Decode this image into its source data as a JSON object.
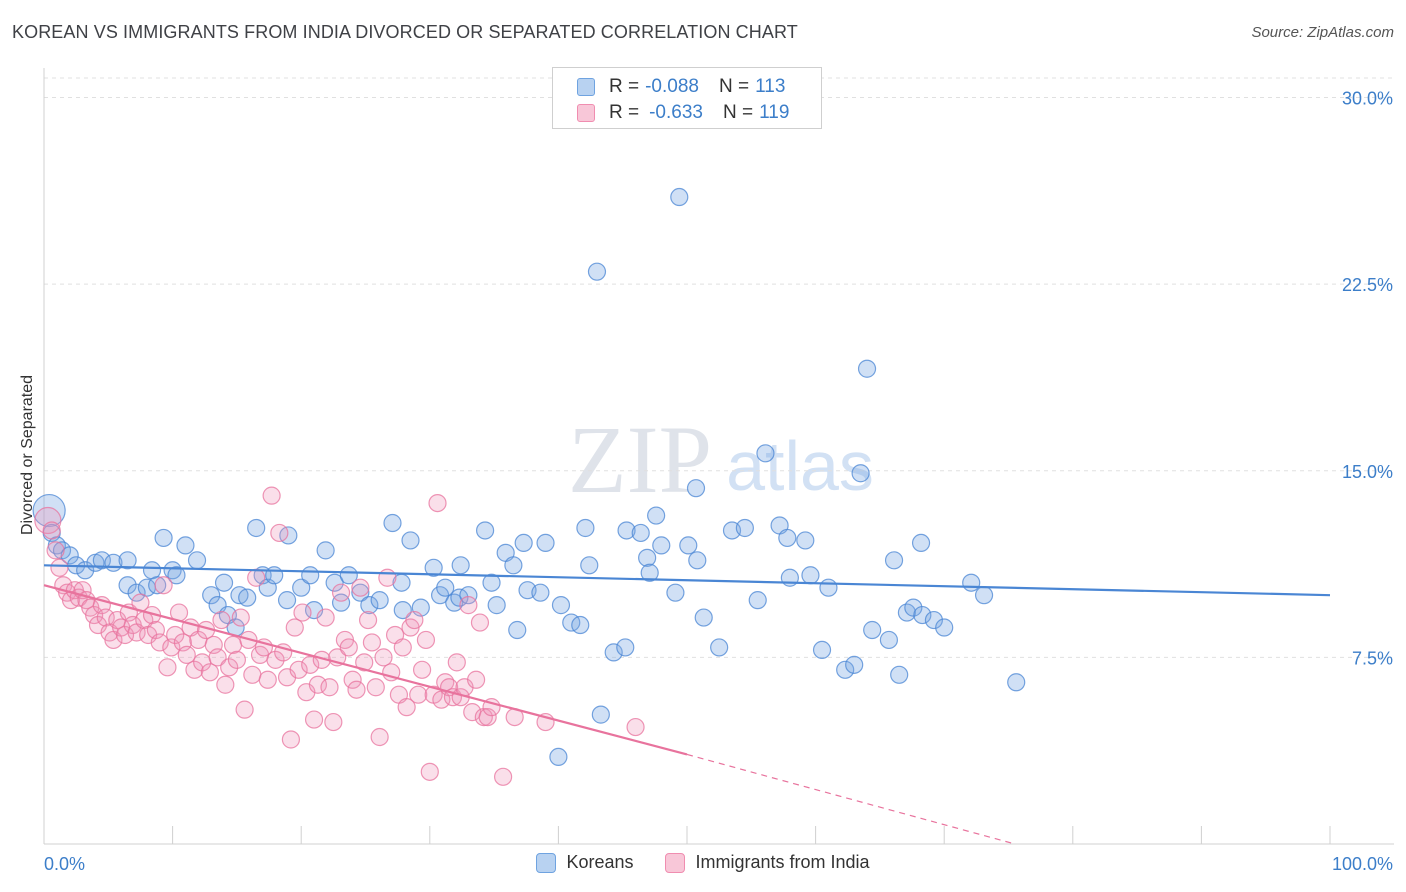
{
  "header": {
    "title": "KOREAN VS IMMIGRANTS FROM INDIA DIVORCED OR SEPARATED CORRELATION CHART",
    "source": "Source: ZipAtlas.com"
  },
  "watermark": {
    "zip": "ZIP",
    "atlas": "atlas"
  },
  "legend": {
    "r_label": "R =",
    "n_label": "N =",
    "rows": [
      {
        "r": "-0.088",
        "n": "113",
        "color": "#6fa3e0",
        "fill": "#b8d2f1"
      },
      {
        "r": "-0.633",
        "n": "119",
        "color": "#f08db0",
        "fill": "#f8c7d8"
      }
    ]
  },
  "bottom_legend": {
    "koreans": "Koreans",
    "india": "Immigrants from India"
  },
  "chart_data": {
    "type": "scatter",
    "title": "KOREAN VS IMMIGRANTS FROM INDIA DIVORCED OR SEPARATED CORRELATION CHART",
    "ylabel": "Divorced or Separated",
    "xlabel": "",
    "xlim": [
      0,
      100
    ],
    "ylim": [
      0,
      31.5
    ],
    "y_ticks": [
      {
        "v": 7.5,
        "label": "7.5%"
      },
      {
        "v": 15.0,
        "label": "15.0%"
      },
      {
        "v": 22.5,
        "label": "22.5%"
      },
      {
        "v": 30.0,
        "label": "30.0%"
      }
    ],
    "x_tick_labels": {
      "left": "0.0%",
      "right": "100.0%"
    },
    "grid": "horizontal dashed",
    "legend_placement": "top-center",
    "series": [
      {
        "name": "Koreans",
        "color": "#4a86d4",
        "fill": "rgba(120,165,225,0.35)",
        "trend": {
          "x": [
            0,
            100
          ],
          "y": [
            11.2,
            10.0
          ]
        },
        "points": [
          [
            0.4,
            13.4
          ],
          [
            0.6,
            12.5
          ],
          [
            1.0,
            12.0
          ],
          [
            1.4,
            11.8
          ],
          [
            2.0,
            11.6
          ],
          [
            2.5,
            11.2
          ],
          [
            3.2,
            11.0
          ],
          [
            4.0,
            11.3
          ],
          [
            4.5,
            11.4
          ],
          [
            5.4,
            11.3
          ],
          [
            6.5,
            11.4
          ],
          [
            6.5,
            10.4
          ],
          [
            7.2,
            10.1
          ],
          [
            8.0,
            10.3
          ],
          [
            8.4,
            11.0
          ],
          [
            8.8,
            10.4
          ],
          [
            9.3,
            12.3
          ],
          [
            10.0,
            11.0
          ],
          [
            10.3,
            10.8
          ],
          [
            11.0,
            12.0
          ],
          [
            11.9,
            11.4
          ],
          [
            13.0,
            10.0
          ],
          [
            13.5,
            9.6
          ],
          [
            14.0,
            10.5
          ],
          [
            14.3,
            9.2
          ],
          [
            14.9,
            8.7
          ],
          [
            15.2,
            10.0
          ],
          [
            15.8,
            9.9
          ],
          [
            16.5,
            12.7
          ],
          [
            17.0,
            10.8
          ],
          [
            17.4,
            10.3
          ],
          [
            17.9,
            10.8
          ],
          [
            18.9,
            9.8
          ],
          [
            19.0,
            12.4
          ],
          [
            20.0,
            10.3
          ],
          [
            20.7,
            10.8
          ],
          [
            21.0,
            9.4
          ],
          [
            21.9,
            11.8
          ],
          [
            22.6,
            10.5
          ],
          [
            23.1,
            9.7
          ],
          [
            23.7,
            10.8
          ],
          [
            24.6,
            10.1
          ],
          [
            25.3,
            9.6
          ],
          [
            26.1,
            9.8
          ],
          [
            27.1,
            12.9
          ],
          [
            27.8,
            10.5
          ],
          [
            27.9,
            9.4
          ],
          [
            28.5,
            12.2
          ],
          [
            29.3,
            9.5
          ],
          [
            30.3,
            11.1
          ],
          [
            30.8,
            10.0
          ],
          [
            31.2,
            10.3
          ],
          [
            31.9,
            9.7
          ],
          [
            32.3,
            9.9
          ],
          [
            32.4,
            11.2
          ],
          [
            33.0,
            10.0
          ],
          [
            34.3,
            12.6
          ],
          [
            34.8,
            10.5
          ],
          [
            35.2,
            9.6
          ],
          [
            35.9,
            11.7
          ],
          [
            36.5,
            11.2
          ],
          [
            36.8,
            8.6
          ],
          [
            37.3,
            12.1
          ],
          [
            37.6,
            10.2
          ],
          [
            38.6,
            10.1
          ],
          [
            39.0,
            12.1
          ],
          [
            40.0,
            3.5
          ],
          [
            40.2,
            9.6
          ],
          [
            41.0,
            8.9
          ],
          [
            41.7,
            8.8
          ],
          [
            42.1,
            12.7
          ],
          [
            42.4,
            11.2
          ],
          [
            43.0,
            23.0
          ],
          [
            43.3,
            5.2
          ],
          [
            44.3,
            7.7
          ],
          [
            45.2,
            7.9
          ],
          [
            45.3,
            12.6
          ],
          [
            46.4,
            12.5
          ],
          [
            46.9,
            11.5
          ],
          [
            47.1,
            10.9
          ],
          [
            47.6,
            13.2
          ],
          [
            48.0,
            12.0
          ],
          [
            49.1,
            10.1
          ],
          [
            49.4,
            26.0
          ],
          [
            50.1,
            12.0
          ],
          [
            50.7,
            14.3
          ],
          [
            50.8,
            11.4
          ],
          [
            51.3,
            9.1
          ],
          [
            52.5,
            7.9
          ],
          [
            53.5,
            12.6
          ],
          [
            54.5,
            12.7
          ],
          [
            55.5,
            9.8
          ],
          [
            56.1,
            15.7
          ],
          [
            57.2,
            12.8
          ],
          [
            57.8,
            12.3
          ],
          [
            58.0,
            10.7
          ],
          [
            59.2,
            12.2
          ],
          [
            59.6,
            10.8
          ],
          [
            60.5,
            7.8
          ],
          [
            61.0,
            10.3
          ],
          [
            62.3,
            7.0
          ],
          [
            63.0,
            7.2
          ],
          [
            63.5,
            14.9
          ],
          [
            64.0,
            19.1
          ],
          [
            64.4,
            8.6
          ],
          [
            65.7,
            8.2
          ],
          [
            66.1,
            11.4
          ],
          [
            66.5,
            6.8
          ],
          [
            67.1,
            9.3
          ],
          [
            67.6,
            9.5
          ],
          [
            68.2,
            12.1
          ],
          [
            68.3,
            9.2
          ],
          [
            69.2,
            9.0
          ],
          [
            70.0,
            8.7
          ],
          [
            72.1,
            10.5
          ],
          [
            73.1,
            10.0
          ],
          [
            75.6,
            6.5
          ]
        ]
      },
      {
        "name": "Immigrants from India",
        "color": "#e8739d",
        "fill": "rgba(240,150,185,0.30)",
        "trend": {
          "x": [
            0,
            50
          ],
          "y": [
            10.4,
            3.6
          ]
        },
        "trend_dashed": {
          "x": [
            50,
            75.5
          ],
          "y": [
            3.6,
            0.0
          ]
        },
        "points": [
          [
            0.3,
            13.0
          ],
          [
            0.6,
            12.6
          ],
          [
            0.9,
            11.8
          ],
          [
            1.2,
            11.1
          ],
          [
            1.5,
            10.4
          ],
          [
            1.8,
            10.1
          ],
          [
            2.1,
            9.8
          ],
          [
            2.4,
            10.2
          ],
          [
            2.7,
            9.9
          ],
          [
            3.0,
            10.2
          ],
          [
            3.3,
            9.8
          ],
          [
            3.6,
            9.5
          ],
          [
            3.9,
            9.2
          ],
          [
            4.2,
            8.8
          ],
          [
            4.5,
            9.6
          ],
          [
            4.8,
            9.1
          ],
          [
            5.1,
            8.5
          ],
          [
            5.4,
            8.2
          ],
          [
            5.7,
            9.0
          ],
          [
            6.0,
            8.7
          ],
          [
            6.3,
            8.4
          ],
          [
            6.6,
            9.3
          ],
          [
            6.9,
            8.8
          ],
          [
            7.2,
            8.5
          ],
          [
            7.5,
            9.7
          ],
          [
            7.8,
            9.0
          ],
          [
            8.1,
            8.4
          ],
          [
            8.4,
            9.2
          ],
          [
            8.7,
            8.6
          ],
          [
            9.0,
            8.1
          ],
          [
            9.3,
            10.4
          ],
          [
            9.6,
            7.1
          ],
          [
            9.9,
            7.9
          ],
          [
            10.2,
            8.4
          ],
          [
            10.5,
            9.3
          ],
          [
            10.8,
            8.1
          ],
          [
            11.1,
            7.6
          ],
          [
            11.4,
            8.7
          ],
          [
            11.7,
            7.0
          ],
          [
            12.0,
            8.2
          ],
          [
            12.3,
            7.3
          ],
          [
            12.6,
            8.6
          ],
          [
            12.9,
            6.9
          ],
          [
            13.2,
            8.0
          ],
          [
            13.5,
            7.5
          ],
          [
            13.8,
            9.0
          ],
          [
            14.1,
            6.4
          ],
          [
            14.4,
            7.1
          ],
          [
            14.7,
            8.0
          ],
          [
            15.0,
            7.4
          ],
          [
            15.3,
            9.1
          ],
          [
            15.6,
            5.4
          ],
          [
            15.9,
            8.2
          ],
          [
            16.2,
            6.8
          ],
          [
            16.5,
            10.7
          ],
          [
            16.8,
            7.6
          ],
          [
            17.1,
            7.9
          ],
          [
            17.4,
            6.6
          ],
          [
            17.7,
            14.0
          ],
          [
            18.0,
            7.4
          ],
          [
            18.3,
            12.5
          ],
          [
            18.6,
            7.7
          ],
          [
            18.9,
            6.7
          ],
          [
            19.2,
            4.2
          ],
          [
            19.5,
            8.7
          ],
          [
            19.8,
            7.0
          ],
          [
            20.1,
            9.3
          ],
          [
            20.4,
            6.1
          ],
          [
            20.7,
            7.2
          ],
          [
            21.0,
            5.0
          ],
          [
            21.3,
            6.4
          ],
          [
            21.6,
            7.4
          ],
          [
            21.9,
            9.1
          ],
          [
            22.2,
            6.3
          ],
          [
            22.5,
            4.9
          ],
          [
            22.8,
            7.5
          ],
          [
            23.1,
            10.1
          ],
          [
            23.4,
            8.2
          ],
          [
            23.7,
            7.9
          ],
          [
            24.0,
            6.6
          ],
          [
            24.3,
            6.2
          ],
          [
            24.6,
            10.3
          ],
          [
            24.9,
            7.3
          ],
          [
            25.2,
            9.0
          ],
          [
            25.5,
            8.1
          ],
          [
            25.8,
            6.3
          ],
          [
            26.1,
            4.3
          ],
          [
            26.4,
            7.5
          ],
          [
            26.7,
            10.7
          ],
          [
            27.0,
            6.9
          ],
          [
            27.3,
            8.4
          ],
          [
            27.6,
            6.0
          ],
          [
            27.9,
            7.9
          ],
          [
            28.2,
            5.5
          ],
          [
            28.5,
            8.7
          ],
          [
            28.8,
            9.0
          ],
          [
            29.1,
            6.0
          ],
          [
            29.4,
            7.0
          ],
          [
            29.7,
            8.2
          ],
          [
            30.0,
            2.9
          ],
          [
            30.3,
            6.0
          ],
          [
            30.6,
            13.7
          ],
          [
            30.9,
            5.8
          ],
          [
            31.2,
            6.5
          ],
          [
            31.5,
            6.3
          ],
          [
            31.8,
            5.9
          ],
          [
            32.1,
            7.3
          ],
          [
            32.4,
            5.9
          ],
          [
            32.7,
            6.3
          ],
          [
            33.0,
            9.6
          ],
          [
            33.3,
            5.3
          ],
          [
            33.6,
            6.6
          ],
          [
            33.9,
            8.9
          ],
          [
            34.2,
            5.1
          ],
          [
            34.5,
            5.1
          ],
          [
            34.8,
            5.5
          ],
          [
            35.7,
            2.7
          ],
          [
            36.6,
            5.1
          ],
          [
            39.0,
            4.9
          ],
          [
            46.0,
            4.7
          ]
        ]
      }
    ]
  }
}
